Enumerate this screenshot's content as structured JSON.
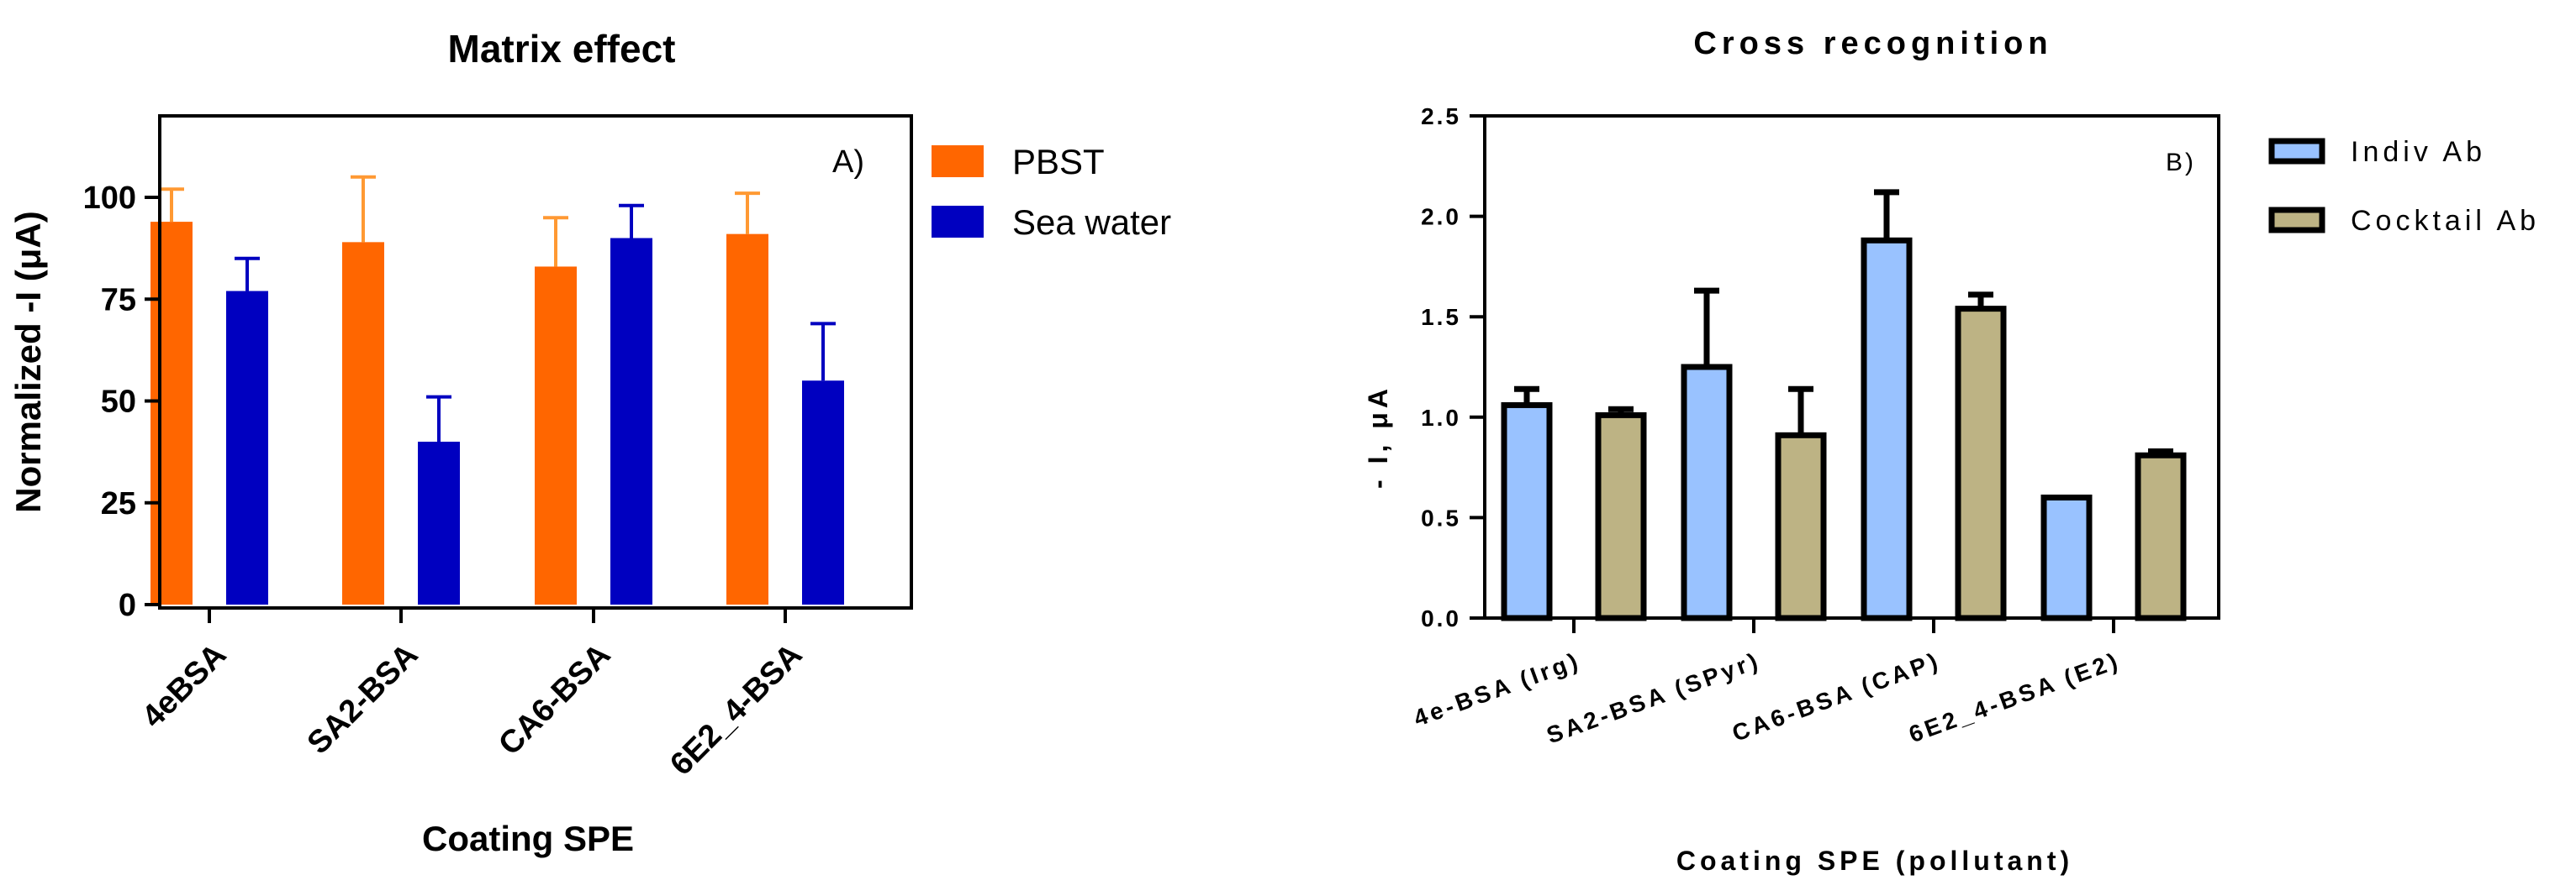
{
  "chart_data": [
    {
      "type": "bar",
      "title": "Matrix effect",
      "panel_label": "A)",
      "xlabel": "Coating SPE",
      "ylabel": "Normalized -I (μA)",
      "ylim": [
        0,
        120
      ],
      "yticks": [
        0,
        25,
        50,
        75,
        100
      ],
      "categories": [
        "4eBSA",
        "SA2-BSA",
        "CA6-BSA",
        "6E2_4-BSA"
      ],
      "series": [
        {
          "name": "PBST",
          "color": "#FF6600",
          "error_color": "#FF9933",
          "values": [
            94,
            89,
            83,
            91
          ],
          "errors": [
            8,
            16,
            12,
            10
          ]
        },
        {
          "name": "Sea water",
          "color": "#0000C0",
          "error_color": "#0000C0",
          "values": [
            77,
            40,
            90,
            55
          ],
          "errors": [
            8,
            11,
            8,
            14
          ]
        }
      ],
      "legend_position": "right"
    },
    {
      "type": "bar",
      "title": "Cross recognition",
      "panel_label": "B)",
      "xlabel": "Coating SPE (pollutant)",
      "ylabel": "- I, μA",
      "ylim": [
        0,
        2.5
      ],
      "yticks": [
        "0.0",
        "0.5",
        "1.0",
        "1.5",
        "2.0",
        "2.5"
      ],
      "categories": [
        "4e-BSA (Irg)",
        "SA2-BSA (SPyr)",
        "CA6-BSA (CAP)",
        "6E2_4-BSA (E2)"
      ],
      "series": [
        {
          "name": "Indiv Ab",
          "color": "#99C2FF",
          "values": [
            1.06,
            1.25,
            1.88,
            0.6
          ],
          "errors": [
            0.08,
            0.38,
            0.24,
            0
          ]
        },
        {
          "name": "Cocktail Ab",
          "color": "#BDB384",
          "values": [
            1.01,
            0.91,
            1.54,
            0.81
          ],
          "errors": [
            0.03,
            0.23,
            0.07,
            0.02
          ]
        }
      ],
      "legend_position": "right"
    }
  ]
}
